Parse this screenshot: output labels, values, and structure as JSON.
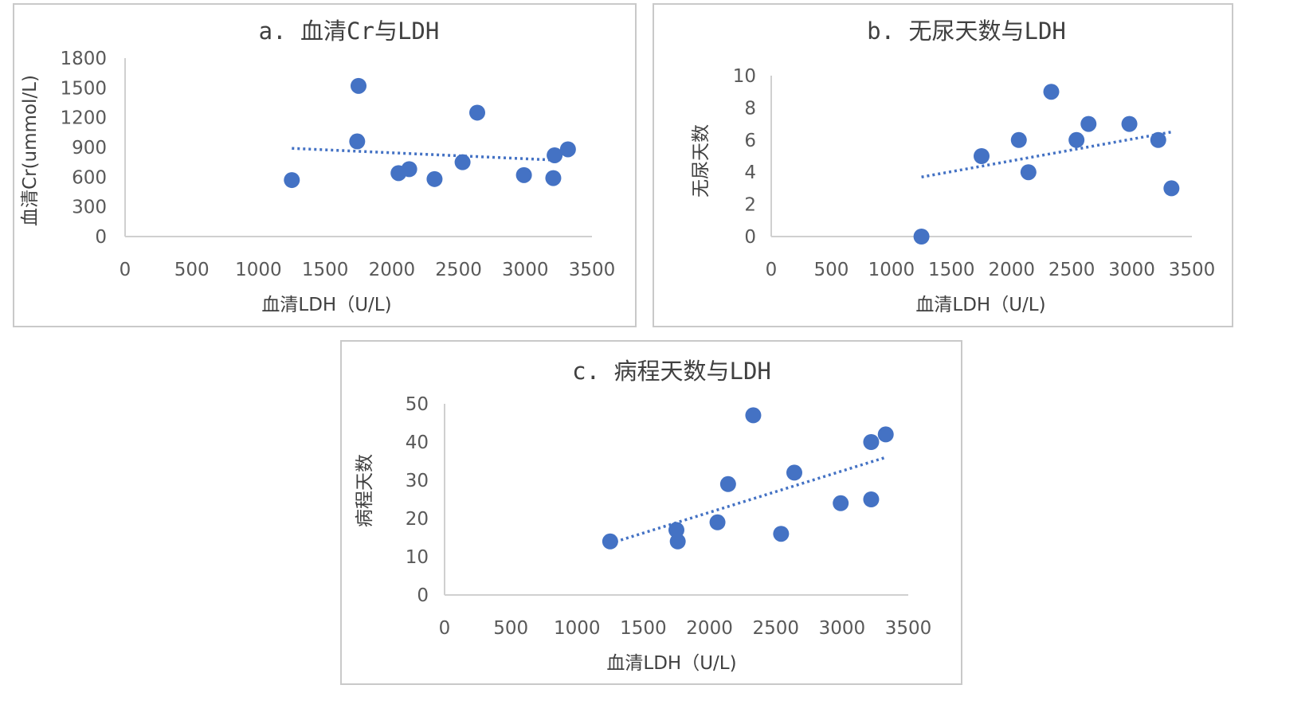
{
  "chart_data": [
    {
      "type": "scatter",
      "title": "a. 血清Cr与LDH",
      "xlabel": "血清LDH（U/L)",
      "ylabel": "血清Cr(ummol/L)",
      "xlim": [
        0,
        3500
      ],
      "ylim": [
        0,
        1800
      ],
      "xticks": [
        "0",
        "500",
        "1000",
        "1500",
        "2000",
        "2500",
        "3000",
        "3500"
      ],
      "yticks": [
        "0",
        "300",
        "600",
        "900",
        "1200",
        "1500",
        "1800"
      ],
      "series": [
        {
          "name": "血清Cr",
          "x": [
            1250,
            1750,
            1740,
            2050,
            2130,
            2320,
            2530,
            2640,
            2990,
            3210,
            3220,
            3320
          ],
          "y": [
            570,
            1520,
            960,
            640,
            680,
            580,
            750,
            1250,
            620,
            590,
            820,
            880
          ]
        }
      ],
      "trendline": {
        "style": "linear dotted",
        "x": [
          1250,
          3250
        ],
        "y": [
          890,
          770
        ]
      }
    },
    {
      "type": "scatter",
      "title": "b. 无尿天数与LDH",
      "xlabel": "血清LDH（U/L)",
      "ylabel": "无尿天数",
      "xlim": [
        0,
        3500
      ],
      "ylim": [
        0,
        10
      ],
      "xticks": [
        "0",
        "500",
        "1000",
        "1500",
        "2000",
        "2500",
        "3000",
        "3500"
      ],
      "yticks": [
        "0",
        "2",
        "4",
        "6",
        "8",
        "10"
      ],
      "series": [
        {
          "name": "无尿天数",
          "x": [
            1250,
            1750,
            2060,
            2140,
            2330,
            2540,
            2640,
            2980,
            3220,
            3330
          ],
          "y": [
            0,
            5,
            6,
            4,
            9,
            6,
            7,
            7,
            6,
            3
          ]
        }
      ],
      "trendline": {
        "style": "linear dotted",
        "x": [
          1250,
          3330
        ],
        "y": [
          3.7,
          6.5
        ]
      }
    },
    {
      "type": "scatter",
      "title": "c. 病程天数与LDH",
      "xlabel": "血清LDH（U/L)",
      "ylabel": "病程天数",
      "xlim": [
        0,
        3500
      ],
      "ylim": [
        0,
        50
      ],
      "xticks": [
        "0",
        "500",
        "1000",
        "1500",
        "2000",
        "2500",
        "3000",
        "3500"
      ],
      "yticks": [
        "0",
        "10",
        "20",
        "30",
        "40",
        "50"
      ],
      "series": [
        {
          "name": "病程天数",
          "x": [
            1250,
            1750,
            1760,
            2060,
            2140,
            2330,
            2540,
            2640,
            2990,
            3220,
            3220,
            3330
          ],
          "y": [
            14,
            17,
            14,
            19,
            29,
            47,
            16,
            32,
            24,
            25,
            40,
            42
          ]
        }
      ],
      "trendline": {
        "style": "linear dotted",
        "x": [
          1250,
          3330
        ],
        "y": [
          13.5,
          36
        ]
      }
    }
  ]
}
